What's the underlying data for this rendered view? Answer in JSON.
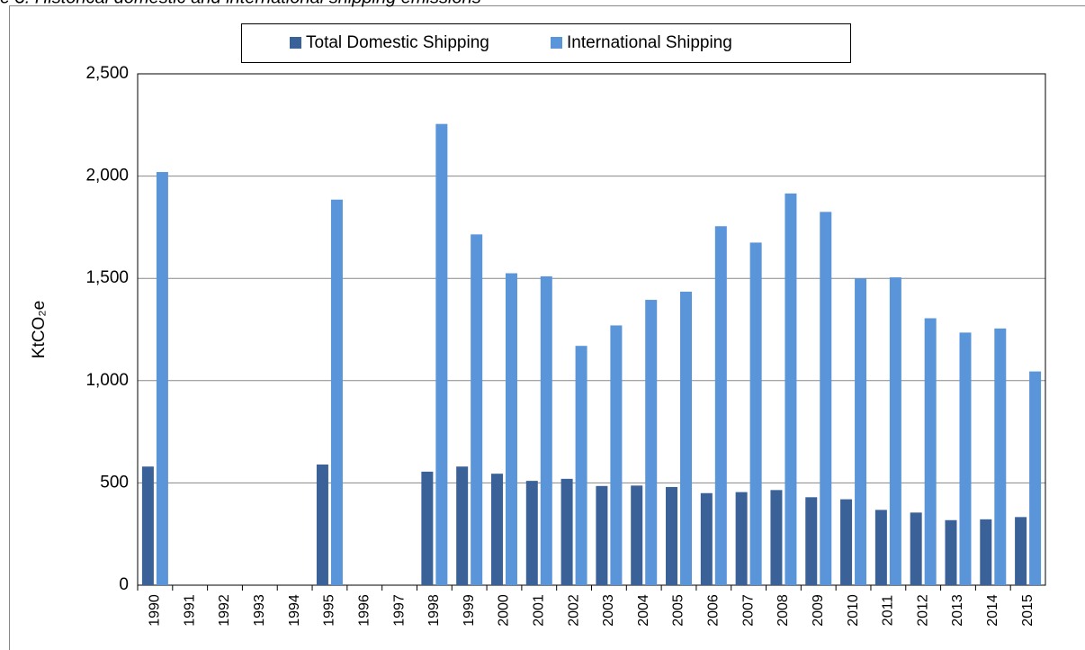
{
  "chart_data": {
    "type": "bar",
    "title": "e 3: Historical domestic and international shipping emissions",
    "ylabel": "KtCO₂e",
    "categories": [
      "1990",
      "1991",
      "1992",
      "1993",
      "1994",
      "1995",
      "1996",
      "1997",
      "1998",
      "1999",
      "2000",
      "2001",
      "2002",
      "2003",
      "2004",
      "2005",
      "2006",
      "2007",
      "2008",
      "2009",
      "2010",
      "2011",
      "2012",
      "2013",
      "2014",
      "2015"
    ],
    "series": [
      {
        "name": "Total Domestic Shipping",
        "color": "#3a6299",
        "values": [
          580,
          null,
          null,
          null,
          null,
          590,
          null,
          null,
          555,
          580,
          545,
          510,
          520,
          485,
          487,
          480,
          450,
          455,
          465,
          430,
          420,
          368,
          355,
          318,
          322,
          333
        ]
      },
      {
        "name": "International Shipping",
        "color": "#5b95d9",
        "values": [
          2020,
          null,
          null,
          null,
          null,
          1885,
          null,
          null,
          2255,
          1715,
          1525,
          1510,
          1170,
          1270,
          1395,
          1435,
          1755,
          1675,
          1915,
          1825,
          1500,
          1505,
          1305,
          1235,
          1255,
          1045
        ]
      }
    ],
    "ylim": [
      0,
      2500
    ],
    "yticks": [
      0,
      500,
      {
        "value": 1000,
        "label": "1,000"
      },
      {
        "value": 1500,
        "label": "1,500"
      },
      {
        "value": 2000,
        "label": "2,000"
      },
      {
        "value": 2500,
        "label": "2,500"
      }
    ],
    "grid": true,
    "legend": "top"
  }
}
